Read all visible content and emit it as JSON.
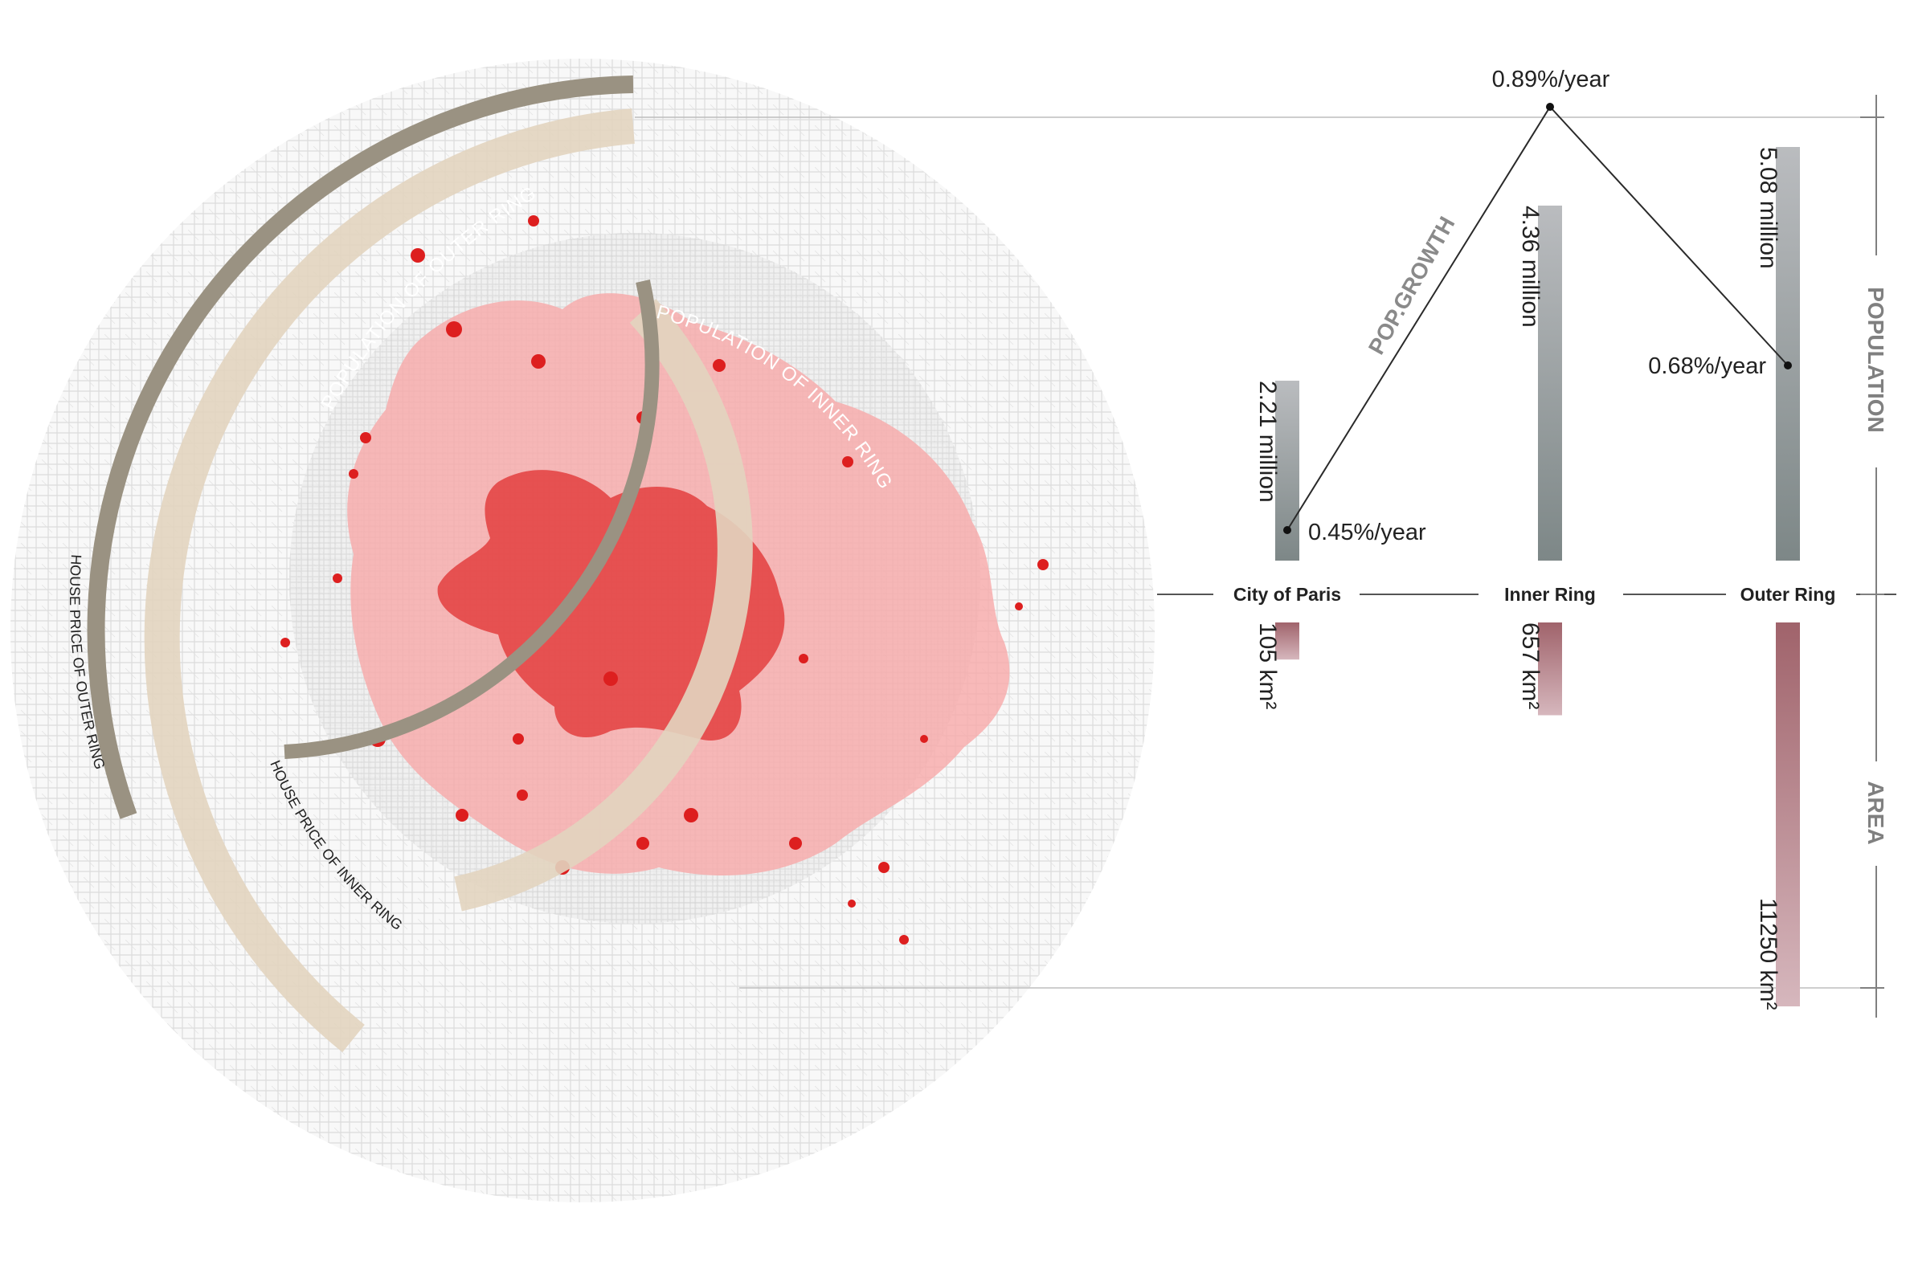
{
  "map": {
    "arc_labels": {
      "pop_outer": "POPULATION OF OUTER RING",
      "pop_inner": "POPULATION OF INNER RING",
      "price_outer": "HOUSE PRICE OF OUTER RING",
      "price_inner": "HOUSE PRICE OF INNER RING"
    },
    "colors": {
      "arc_dark": "#9a9282",
      "arc_light": "#e2d4bf",
      "urban_core": "#e23a3a",
      "urban_pink": "#f7a9a9",
      "red_patch": "#dd1f1f",
      "street_fill": "#f2f2f2"
    }
  },
  "chart_data": {
    "type": "bar",
    "categories": [
      "City of Paris",
      "Inner Ring",
      "Outer Ring"
    ],
    "series": [
      {
        "key": "population",
        "values": [
          2.21,
          4.36,
          5.08
        ],
        "labels": [
          "2.21 million",
          "4.36 million",
          "5.08 million"
        ]
      },
      {
        "key": "area",
        "values": [
          105,
          657,
          11250
        ],
        "labels": [
          "105 km²",
          "657 km²",
          "11250 km²"
        ]
      }
    ],
    "growth": {
      "title": "POP.GROWTH",
      "rates": [
        0.45,
        0.89,
        0.68
      ],
      "labels": [
        "0.45%/year",
        "0.89%/year",
        "0.68%/year"
      ]
    },
    "axis_labels": {
      "population": "POPULATION",
      "area": "AREA"
    },
    "colors": {
      "pop_top": "#babcbf",
      "pop_bottom": "#7d8787",
      "area_top": "#a0636b",
      "area_bottom": "#d6b7bd",
      "line": "#2a2a2a",
      "guide": "#bdbdbd",
      "axis": "#808080"
    }
  }
}
